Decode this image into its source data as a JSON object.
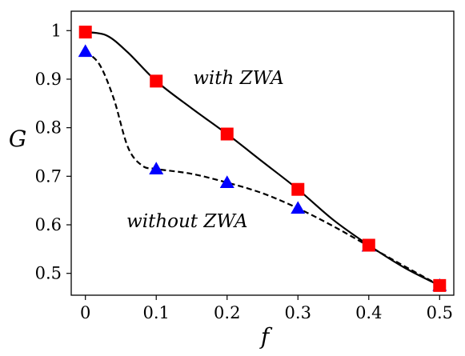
{
  "chart_data": {
    "type": "line",
    "xlabel": "f",
    "ylabel": "G",
    "xlim": [
      -0.02,
      0.52
    ],
    "ylim": [
      0.455,
      1.04
    ],
    "x_ticks": [
      0,
      0.1,
      0.2,
      0.3,
      0.4,
      0.5
    ],
    "x_tick_labels": [
      "0",
      "0.1",
      "0.2",
      "0.3",
      "0.4",
      "0.5"
    ],
    "y_ticks": [
      0.5,
      0.6,
      0.7,
      0.8,
      0.9,
      1.0
    ],
    "y_tick_labels": [
      "0.5",
      "0.6",
      "0.7",
      "0.8",
      "0.9",
      "1"
    ],
    "grid": false,
    "series": [
      {
        "label": "with ZWA",
        "marker": "square",
        "marker_color": "#ff0000",
        "line_style": "solid",
        "x": [
          0,
          0.1,
          0.2,
          0.3,
          0.4,
          0.5
        ],
        "y": [
          0.997,
          0.896,
          0.787,
          0.673,
          0.558,
          0.475
        ],
        "curve_x": [
          0,
          0.03,
          0.06,
          0.1,
          0.15,
          0.2,
          0.25,
          0.3,
          0.35,
          0.4,
          0.45,
          0.5
        ],
        "curve_y": [
          0.997,
          0.99,
          0.955,
          0.896,
          0.84,
          0.787,
          0.73,
          0.673,
          0.61,
          0.558,
          0.512,
          0.475
        ]
      },
      {
        "label": "without ZWA",
        "marker": "triangle",
        "marker_color": "#0000ff",
        "line_style": "dashed",
        "x": [
          0,
          0.1,
          0.2,
          0.3,
          0.4,
          0.5
        ],
        "y": [
          0.957,
          0.715,
          0.687,
          0.634,
          0.556,
          0.475
        ],
        "curve_x": [
          0,
          0.02,
          0.04,
          0.06,
          0.08,
          0.1,
          0.15,
          0.2,
          0.25,
          0.3,
          0.35,
          0.4,
          0.45,
          0.5
        ],
        "curve_y": [
          0.957,
          0.93,
          0.86,
          0.76,
          0.722,
          0.715,
          0.705,
          0.687,
          0.665,
          0.634,
          0.597,
          0.556,
          0.515,
          0.475
        ]
      }
    ],
    "annotations": [
      {
        "text": "with ZWA",
        "x": 0.152,
        "y": 0.89
      },
      {
        "text": "without ZWA",
        "x": 0.058,
        "y": 0.595
      }
    ]
  }
}
